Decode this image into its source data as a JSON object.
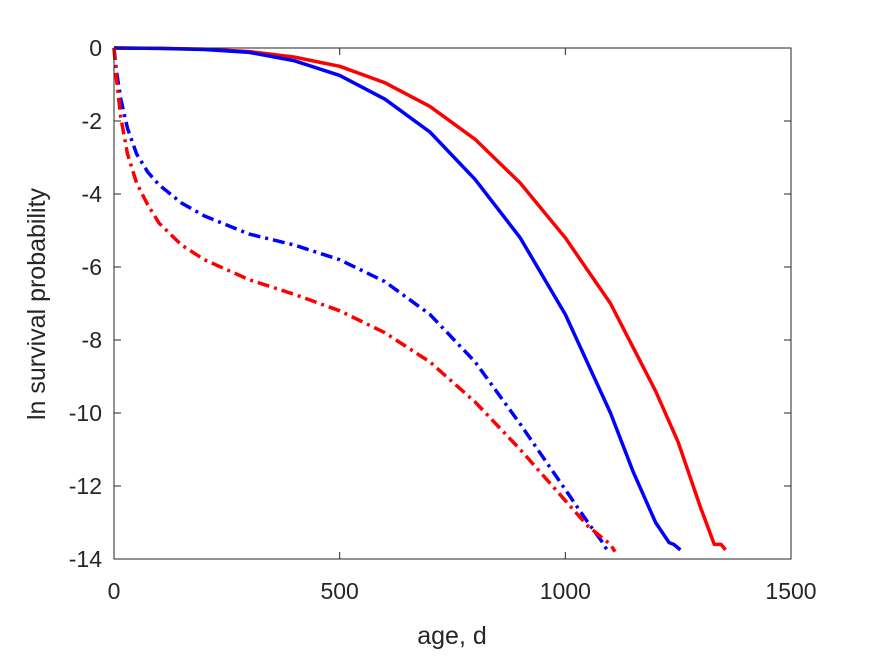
{
  "chart_data": {
    "type": "line",
    "title": "",
    "xlabel": "age, d",
    "ylabel": "ln survival probability",
    "xlim": [
      0,
      1500
    ],
    "ylim": [
      -14,
      0
    ],
    "xticks": [
      0,
      500,
      1000,
      1500
    ],
    "yticks": [
      0,
      -2,
      -4,
      -6,
      -8,
      -10,
      -12,
      -14
    ],
    "grid": false,
    "legend": "none",
    "series": [
      {
        "color": "#ff0000",
        "style": "solid",
        "x": [
          0,
          100,
          200,
          300,
          400,
          500,
          600,
          700,
          800,
          900,
          1000,
          1100,
          1200,
          1250,
          1300,
          1330,
          1345,
          1355
        ],
        "y": [
          0,
          -0.01,
          -0.03,
          -0.1,
          -0.25,
          -0.5,
          -0.95,
          -1.6,
          -2.5,
          -3.7,
          -5.2,
          -7.0,
          -9.4,
          -10.8,
          -12.6,
          -13.6,
          -13.6,
          -13.75
        ]
      },
      {
        "color": "#0000ff",
        "style": "solid",
        "x": [
          0,
          100,
          200,
          300,
          400,
          500,
          600,
          700,
          800,
          900,
          1000,
          1100,
          1150,
          1200,
          1230,
          1240,
          1255
        ],
        "y": [
          0,
          -0.01,
          -0.04,
          -0.12,
          -0.35,
          -0.75,
          -1.4,
          -2.3,
          -3.6,
          -5.2,
          -7.3,
          -10.0,
          -11.6,
          -13.0,
          -13.55,
          -13.6,
          -13.75
        ]
      },
      {
        "color": "#0000ff",
        "style": "dashdot",
        "x": [
          0,
          5,
          15,
          30,
          50,
          75,
          100,
          150,
          200,
          300,
          400,
          500,
          600,
          700,
          800,
          900,
          1000,
          1050,
          1080,
          1095
        ],
        "y": [
          0,
          -0.6,
          -1.4,
          -2.2,
          -2.9,
          -3.4,
          -3.75,
          -4.25,
          -4.6,
          -5.1,
          -5.4,
          -5.8,
          -6.4,
          -7.3,
          -8.6,
          -10.3,
          -12.1,
          -13.0,
          -13.5,
          -13.8
        ]
      },
      {
        "color": "#ff0000",
        "style": "dashdot",
        "x": [
          0,
          5,
          15,
          30,
          50,
          75,
          100,
          150,
          200,
          300,
          400,
          500,
          600,
          700,
          800,
          900,
          1000,
          1050,
          1080,
          1100,
          1110
        ],
        "y": [
          0,
          -0.8,
          -1.9,
          -2.9,
          -3.7,
          -4.3,
          -4.8,
          -5.4,
          -5.8,
          -6.35,
          -6.75,
          -7.2,
          -7.8,
          -8.6,
          -9.7,
          -11.0,
          -12.4,
          -13.1,
          -13.4,
          -13.6,
          -13.8
        ]
      }
    ]
  }
}
